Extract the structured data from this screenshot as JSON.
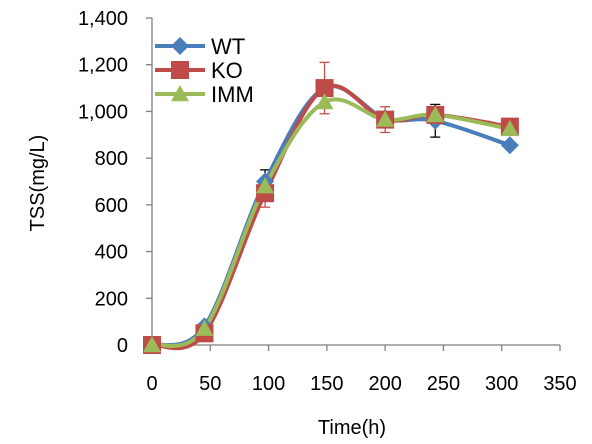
{
  "chart_data": {
    "type": "line",
    "xlabel": "Time(h)",
    "ylabel": "TSS(mg/L)",
    "xlim": [
      0,
      350
    ],
    "ylim": [
      0,
      1400
    ],
    "xticks": [
      0,
      50,
      100,
      150,
      200,
      250,
      300,
      350
    ],
    "yticks": [
      0,
      200,
      400,
      600,
      800,
      1000,
      1200,
      1400
    ],
    "xtick_labels": [
      "0",
      "50",
      "100",
      "150",
      "200",
      "250",
      "300",
      "350"
    ],
    "ytick_labels": [
      "0",
      "200",
      "400",
      "600",
      "800",
      "1,000",
      "1,200",
      "1,400"
    ],
    "grid": false,
    "legend_position": "top-left",
    "series": [
      {
        "name": "WT",
        "color": "#4A7EBB",
        "marker": "diamond",
        "x": [
          0,
          45,
          97,
          148,
          200,
          243,
          307
        ],
        "y": [
          0,
          80,
          700,
          1100,
          970,
          960,
          855
        ],
        "error": [
          0,
          0,
          50,
          0,
          0,
          70,
          0
        ]
      },
      {
        "name": "KO",
        "color": "#BE4B48",
        "marker": "square",
        "x": [
          0,
          45,
          97,
          148,
          200,
          243,
          307
        ],
        "y": [
          0,
          50,
          650,
          1100,
          965,
          985,
          935
        ],
        "error": [
          0,
          0,
          60,
          110,
          55,
          0,
          0
        ]
      },
      {
        "name": "IMM",
        "color": "#9BBB59",
        "marker": "triangle",
        "x": [
          0,
          45,
          97,
          148,
          200,
          243,
          307
        ],
        "y": [
          0,
          70,
          680,
          1040,
          965,
          985,
          925
        ],
        "error": [
          0,
          0,
          0,
          0,
          0,
          0,
          0
        ]
      }
    ]
  }
}
